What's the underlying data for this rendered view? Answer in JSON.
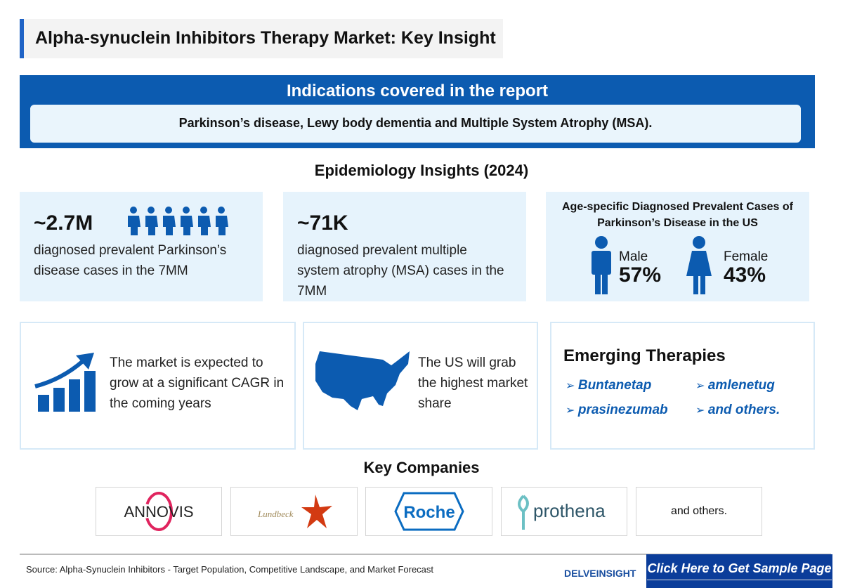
{
  "title": "Alpha-synuclein Inhibitors Therapy Market: Key Insight",
  "indications": {
    "heading": "Indications covered in the report",
    "text": "Parkinson’s disease, Lewy body dementia and Multiple System Atrophy (MSA)."
  },
  "epidemiology": {
    "heading": "Epidemiology Insights (2024)",
    "pd": {
      "value": "~2.7M",
      "text": "diagnosed prevalent Parkinson’s disease cases in the 7MM"
    },
    "msa": {
      "value": "~71K",
      "text": "diagnosed prevalent multiple system atrophy (MSA) cases in the 7MM"
    },
    "gender": {
      "heading": "Age-specific Diagnosed Prevalent Cases of Parkinson’s Disease in the US",
      "male_label": "Male",
      "male_value": "57%",
      "female_label": "Female",
      "female_value": "43%"
    }
  },
  "market": {
    "growth_text": "The market is expected to grow at a significant CAGR in the coming years",
    "us_text": "The US will grab the highest market share"
  },
  "therapies": {
    "heading": "Emerging Therapies",
    "items": [
      "Buntanetap",
      "amlenetug",
      "prasinezumab",
      "and others."
    ]
  },
  "companies": {
    "heading": "Key Companies",
    "logos": [
      "ANNOVIS",
      "Lundbeck",
      "Roche",
      "prothena"
    ],
    "others": "and others."
  },
  "footer": {
    "source": "Source: Alpha-Synuclein Inhibitors - Target Population, Competitive Landscape, and Market Forecast",
    "brand": "DELVEINSIGHT",
    "cta": "Click Here to Get Sample Page"
  },
  "colors": {
    "primary": "#0c5bb0",
    "card": "#e6f3fc",
    "cta": "#0b3d9a"
  }
}
